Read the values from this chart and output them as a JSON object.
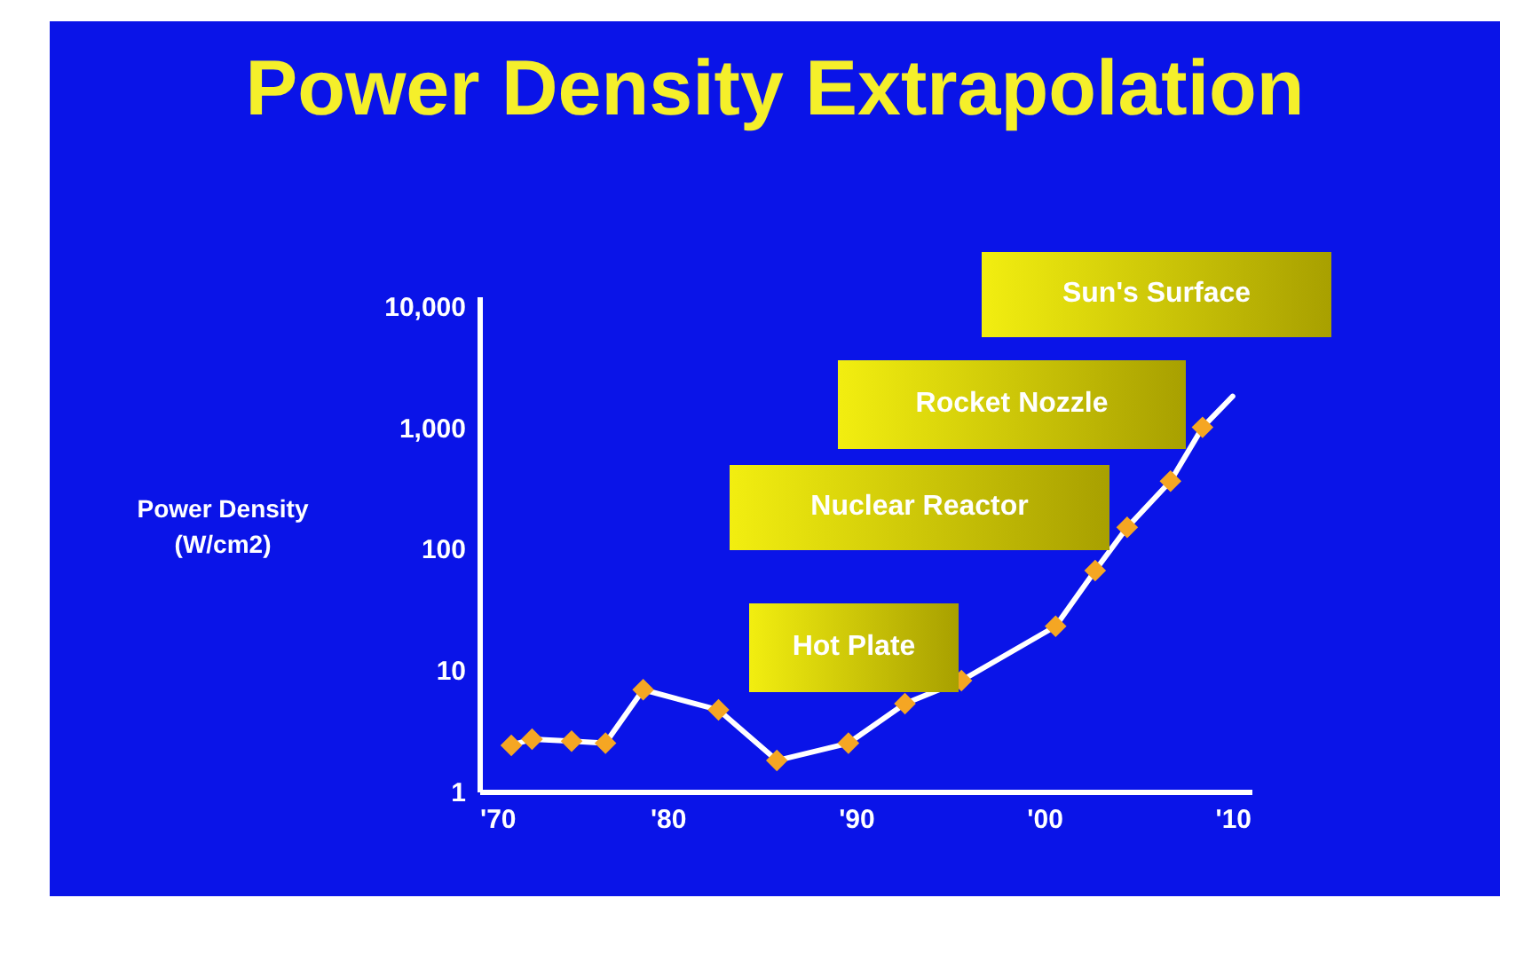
{
  "chart_data": {
    "type": "line",
    "title": "Power Density Extrapolation",
    "ylabel": "Power Density\n(W/cm2)",
    "log": "y",
    "marker": "diamond",
    "grid": false,
    "xlim": [
      1970,
      2011
    ],
    "xticks": [
      {
        "value": 1970,
        "label": "'70"
      },
      {
        "value": 1980,
        "label": "'80"
      },
      {
        "value": 1990,
        "label": "'90"
      },
      {
        "value": 2000,
        "label": "'00"
      },
      {
        "value": 2010,
        "label": "'10"
      }
    ],
    "ylim": [
      1,
      12000
    ],
    "yticks": [
      1,
      10,
      100,
      {
        "value": 1000,
        "label": "1,000"
      },
      {
        "value": 10000,
        "label": "10,000"
      }
    ],
    "series": [
      {
        "marker": "none",
        "color": "#ffffff",
        "x": [
          1971.7,
          1972.8,
          1974.9,
          1976.7,
          1978.7,
          1982.7,
          1985.8,
          1989.6,
          1992.6,
          1995.6,
          2000.6,
          2002.7,
          2004.4,
          2006.7,
          2008.4,
          2010
        ],
        "values": [
          2.4,
          2.7,
          2.6,
          2.5,
          6.9,
          4.7,
          1.8,
          2.5,
          5.3,
          8.2,
          23,
          66,
          150,
          360,
          1000,
          1800
        ]
      },
      {
        "type": "scatter",
        "color": "#f5a623",
        "x": [
          1971.7,
          1972.8,
          1974.9,
          1976.7,
          1978.7,
          1982.7,
          1985.8,
          1989.6,
          1992.6,
          1995.6,
          2000.6,
          2002.7,
          2004.4,
          2006.7,
          2008.4
        ],
        "values": [
          2.4,
          2.7,
          2.6,
          2.5,
          6.9,
          4.7,
          1.8,
          2.5,
          5.3,
          8.2,
          23,
          66,
          150,
          360,
          1000
        ]
      }
    ],
    "annotations": [
      "Hot Plate",
      "Nuclear Reactor",
      "Rocket Nozzle",
      "Sun's Surface"
    ]
  }
}
